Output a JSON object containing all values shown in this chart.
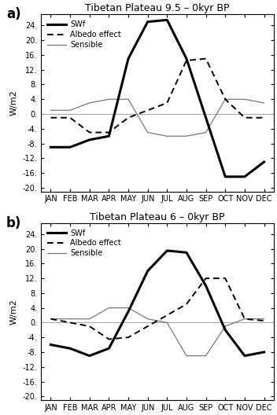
{
  "panel_a": {
    "title": "Tibetan Plateau 9.5 – 0kyr BP",
    "SWf": [
      -9,
      -9,
      -7,
      -6,
      15,
      25,
      25.5,
      15,
      -1,
      -17,
      -17,
      -13
    ],
    "Albedo_effect": [
      -1,
      -1,
      -5,
      -5,
      -1,
      1,
      3,
      14.5,
      15,
      4,
      -1,
      -1
    ],
    "Sensible": [
      1,
      1,
      3,
      4,
      4,
      -5,
      -6,
      -6,
      -5,
      4,
      4,
      3
    ]
  },
  "panel_b": {
    "title": "Tibetan Plateau 6 – 0kyr BP",
    "SWf": [
      -6,
      -7,
      -9,
      -7,
      3,
      14,
      19.5,
      19,
      10,
      -2,
      -9,
      -8
    ],
    "Albedo_effect": [
      1,
      0,
      -1,
      -4.5,
      -4,
      -1,
      2,
      5,
      12,
      12,
      1,
      0.5
    ],
    "Sensible": [
      1,
      1,
      1,
      4,
      4,
      1,
      0,
      -9,
      -9,
      -1,
      1,
      1
    ]
  },
  "months": [
    "JAN",
    "FEB",
    "MAR",
    "APR",
    "MAY",
    "JUN",
    "JUL",
    "AUG",
    "SEP",
    "OCT",
    "NOV",
    "DEC"
  ],
  "ylim": [
    -21,
    27
  ],
  "yticks": [
    -20,
    -16,
    -12,
    -8,
    -4,
    0,
    4,
    8,
    12,
    16,
    20,
    24
  ],
  "ytick_labels": [
    "-20.",
    "-16.",
    "-12.",
    "-8.",
    "-4.",
    "0.",
    "4.",
    "8.",
    "12.",
    "16.",
    "20.",
    "24."
  ],
  "ylabel": "W/m2",
  "swf_color": "#000000",
  "albedo_color": "#000000",
  "sensible_color": "#777777",
  "zero_line_color": "#aaaaaa",
  "background": "#ffffff",
  "panel_labels": [
    "a)",
    "b)"
  ],
  "swf_lw": 2.2,
  "albedo_lw": 1.4,
  "sensible_lw": 0.9,
  "title_fontsize": 9,
  "tick_fontsize": 7,
  "label_fontsize": 8
}
